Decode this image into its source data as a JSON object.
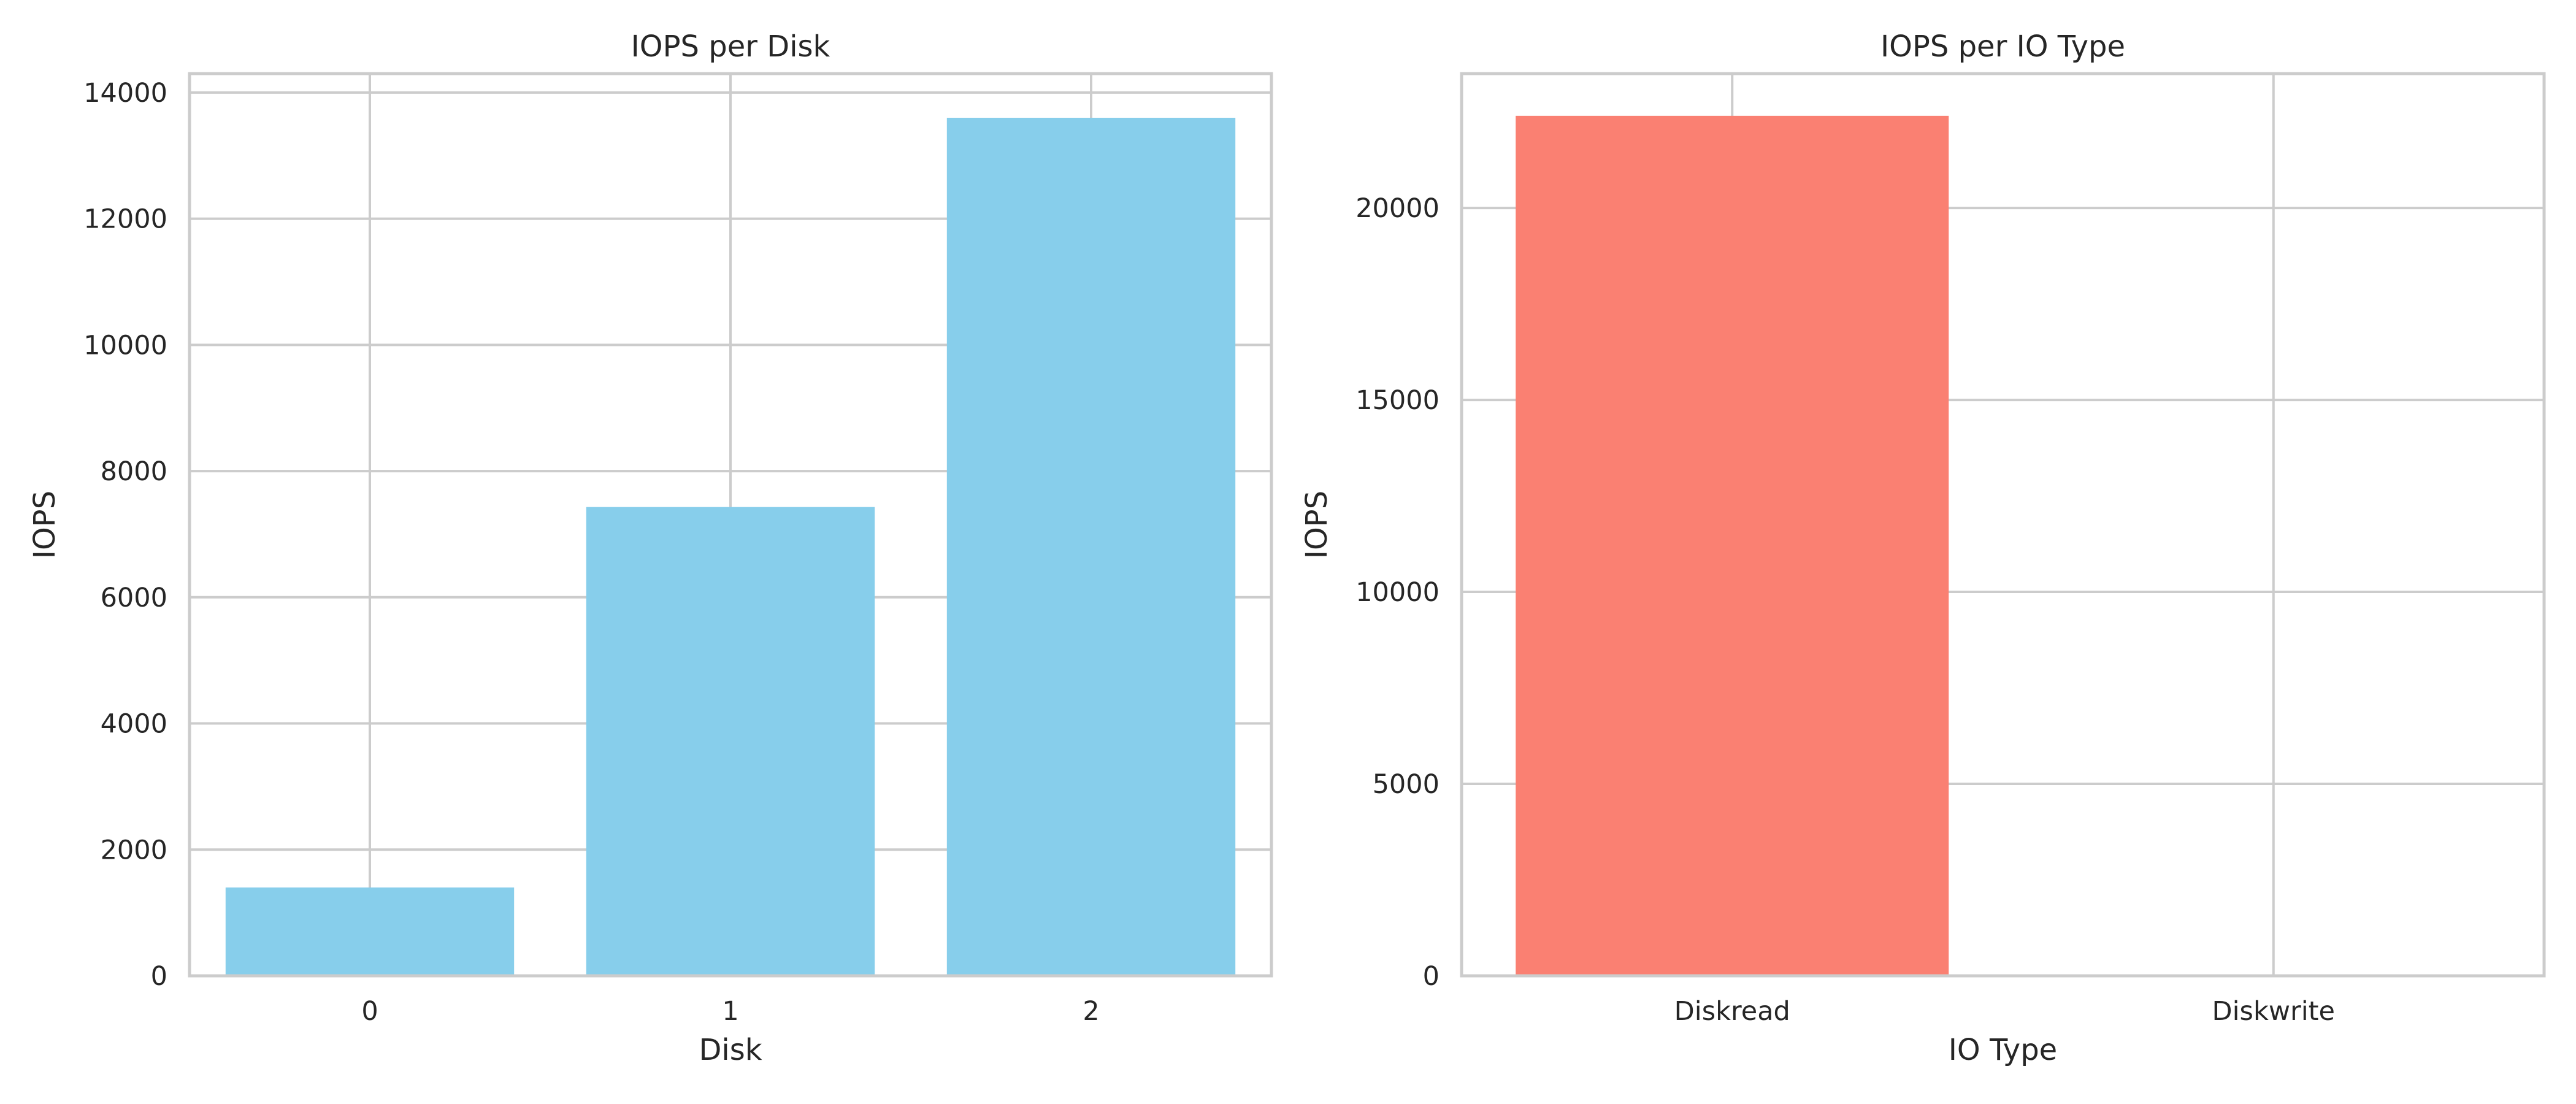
{
  "figure": {
    "background": "#ffffff"
  },
  "chart_data": [
    {
      "type": "bar",
      "title": "IOPS per Disk",
      "xlabel": "Disk",
      "ylabel": "IOPS",
      "categories": [
        "0",
        "1",
        "2"
      ],
      "values": [
        1400,
        7430,
        13600
      ],
      "ylim": [
        0,
        14300
      ],
      "yticks": [
        0,
        2000,
        4000,
        6000,
        8000,
        10000,
        12000,
        14000
      ],
      "yticklabels": [
        "0",
        "2000",
        "4000",
        "6000",
        "8000",
        "10000",
        "12000",
        "14000"
      ],
      "bar_color": "#87ceeb",
      "grid": true
    },
    {
      "type": "bar",
      "title": "IOPS per IO Type",
      "xlabel": "IO Type",
      "ylabel": "IOPS",
      "categories": [
        "Diskread",
        "Diskwrite"
      ],
      "values": [
        22400,
        0
      ],
      "ylim": [
        0,
        23500
      ],
      "yticks": [
        0,
        5000,
        10000,
        15000,
        20000
      ],
      "yticklabels": [
        "0",
        "5000",
        "10000",
        "15000",
        "20000"
      ],
      "bar_color": "#fa8072",
      "grid": true
    }
  ]
}
